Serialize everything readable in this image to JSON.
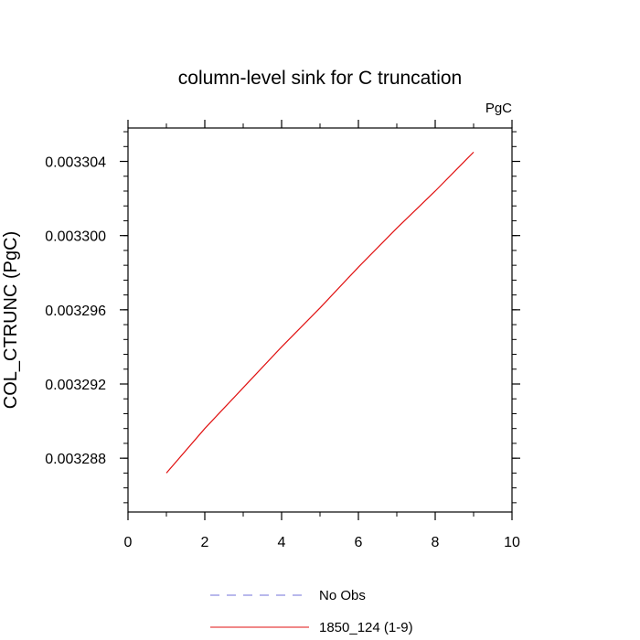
{
  "chart_data": {
    "type": "line",
    "title": "column-level sink for C truncation",
    "units_label": "PgC",
    "xlabel": "",
    "ylabel": "COL_CTRUNC  (PgC)",
    "xlim": [
      0,
      10
    ],
    "ylim": [
      0.0032851,
      0.0033058
    ],
    "x_ticks": [
      0,
      2,
      4,
      6,
      8,
      10
    ],
    "x_tick_labels": [
      "0",
      "2",
      "4",
      "6",
      "8",
      "10"
    ],
    "x_minor_step": 1,
    "y_ticks": [
      0.003288,
      0.003292,
      0.003296,
      0.0033,
      0.003304
    ],
    "y_tick_labels": [
      "0.003288",
      "0.003292",
      "0.003296",
      "0.003300",
      "0.003304"
    ],
    "y_minor_step": 8e-07,
    "grid": false,
    "legend_position": "bottom",
    "series": [
      {
        "name": "No Obs",
        "color": "#7070d8",
        "dash": "dashed",
        "x": [],
        "values": []
      },
      {
        "name": "1850_124 (1-9)",
        "color": "#e01010",
        "dash": "solid",
        "x": [
          1,
          2,
          3,
          4,
          5,
          6,
          7,
          8,
          9
        ],
        "values": [
          0.0032872,
          0.0032896,
          0.0032918,
          0.003294,
          0.0032961,
          0.0032983,
          0.0033004,
          0.0033024,
          0.0033045
        ]
      }
    ]
  }
}
